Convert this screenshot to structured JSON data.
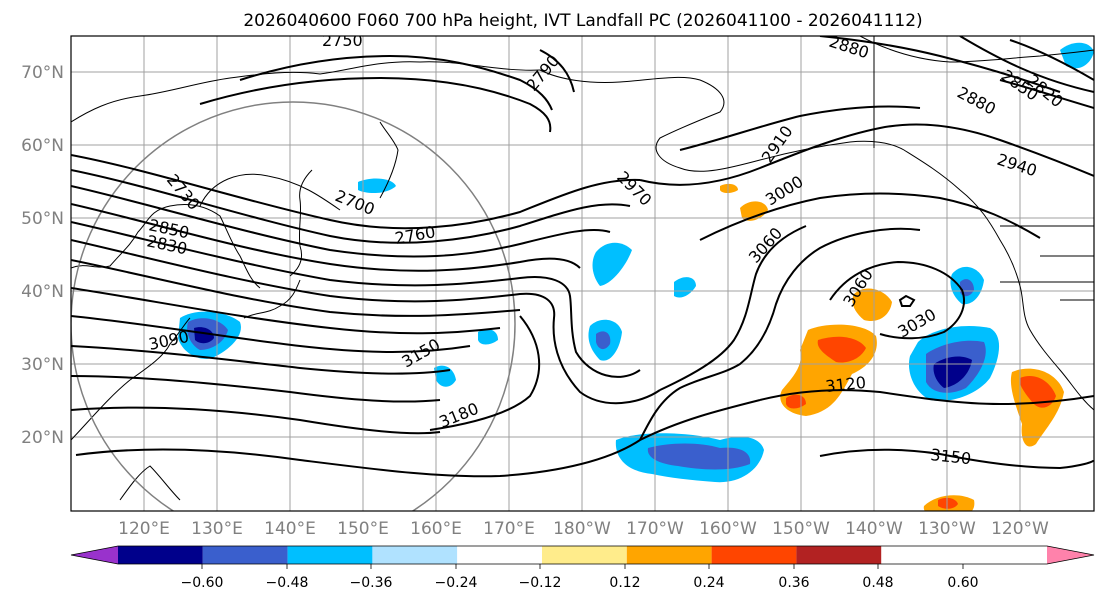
{
  "title": "2026040600 F060 700 hPa height, IVT Landfall PC (2026041100 - 2026041112)",
  "map": {
    "lat_labels": [
      "70°N",
      "60°N",
      "50°N",
      "40°N",
      "30°N",
      "20°N"
    ],
    "lon_labels": [
      "120°E",
      "130°E",
      "140°E",
      "150°E",
      "160°E",
      "170°E",
      "180°W",
      "170°W",
      "160°W",
      "150°W",
      "140°W",
      "130°W",
      "120°W"
    ],
    "contour_labels": [
      "2730",
      "2750",
      "2790",
      "2880",
      "2850",
      "2820",
      "2880",
      "2910",
      "2940",
      "2700",
      "2760",
      "2970",
      "3000",
      "2850",
      "2830",
      "3060",
      "3060",
      "3030",
      "3090",
      "3150",
      "3120",
      "3180",
      "3150"
    ]
  },
  "colorbar": {
    "ticks": [
      "−0.60",
      "−0.48",
      "−0.36",
      "−0.24",
      "−0.12",
      "0.12",
      "0.24",
      "0.36",
      "0.48",
      "0.60"
    ],
    "colors": [
      "#9932cc",
      "#00008b",
      "#3a5fcd",
      "#00bfff",
      "#b0e2ff",
      "#ffffff",
      "#ffec8b",
      "#ffa500",
      "#ff4500",
      "#b22222",
      "#ff82ab"
    ]
  }
}
